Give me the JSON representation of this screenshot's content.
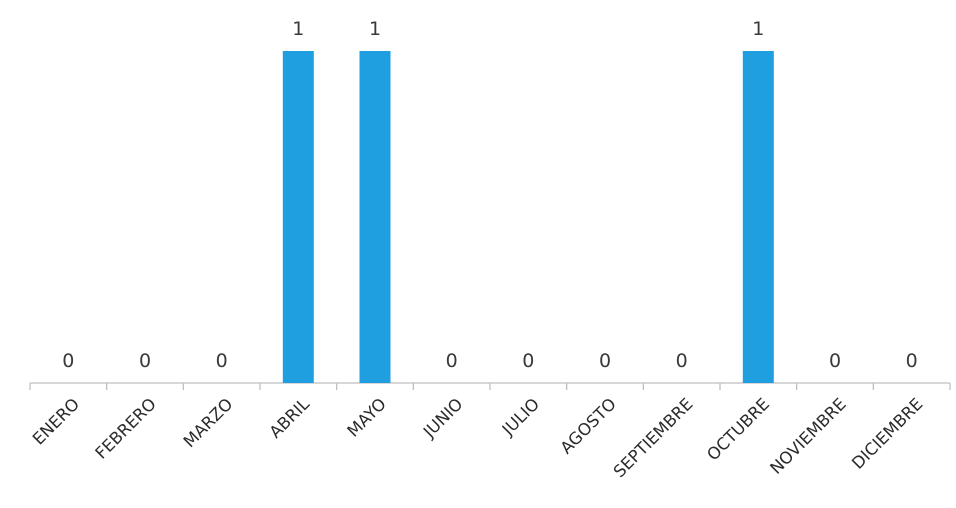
{
  "chart_data": {
    "type": "bar",
    "categories": [
      "ENERO",
      "FEBRERO",
      "MARZO",
      "ABRIL",
      "MAYO",
      "JUNIO",
      "JULIO",
      "AGOSTO",
      "SEPTIEMBRE",
      "OCTUBRE",
      "NOVIEMBRE",
      "DICIEMBRE"
    ],
    "values": [
      0,
      0,
      0,
      1,
      1,
      0,
      0,
      0,
      0,
      1,
      0,
      0
    ],
    "data_labels": [
      "0",
      "0",
      "0",
      "1",
      "1",
      "0",
      "0",
      "0",
      "0",
      "1",
      "0",
      "0"
    ],
    "title": "",
    "xlabel": "",
    "ylabel": "",
    "ylim": [
      0,
      1
    ],
    "grid": false,
    "legend": "none",
    "bar_color": "#1f9ee0",
    "axis_color": "#bfbfbf",
    "label_color": "#3a3a3a"
  }
}
